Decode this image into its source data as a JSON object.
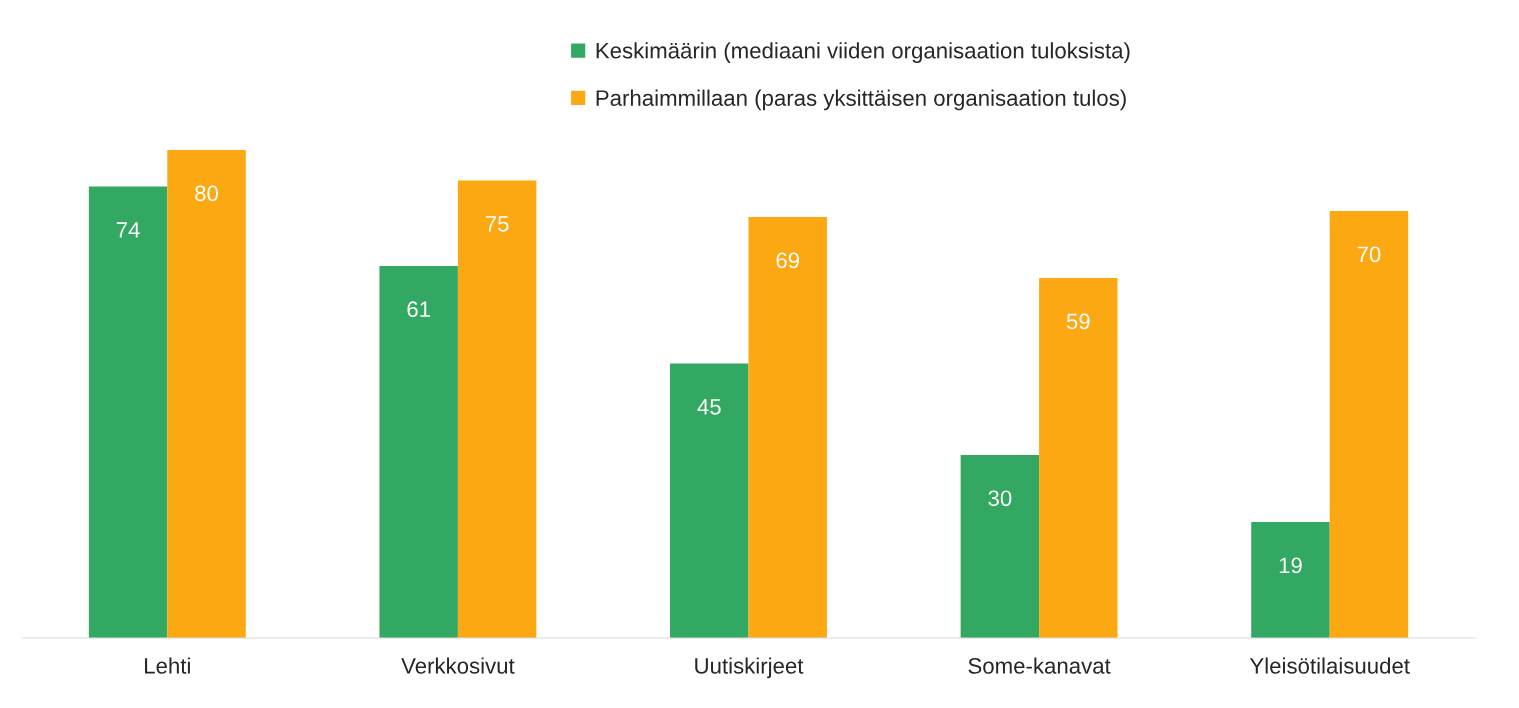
{
  "chart_data": {
    "type": "bar",
    "categories": [
      "Lehti",
      "Verkkosivut",
      "Uutiskirjeet",
      "Some-kanavat",
      "Yleisötilaisuudet"
    ],
    "series": [
      {
        "name": "Keskimäärin (mediaani viiden organisaation tuloksista)",
        "color": "#33a862",
        "values": [
          74,
          61,
          45,
          30,
          19
        ]
      },
      {
        "name": "Parhaimmillaan (paras yksittäisen organisaation tulos)",
        "color": "#fca813",
        "values": [
          80,
          75,
          69,
          59,
          70
        ]
      }
    ],
    "data_labels": true,
    "legend": "top",
    "grid": false,
    "tick_labels": "x"
  }
}
